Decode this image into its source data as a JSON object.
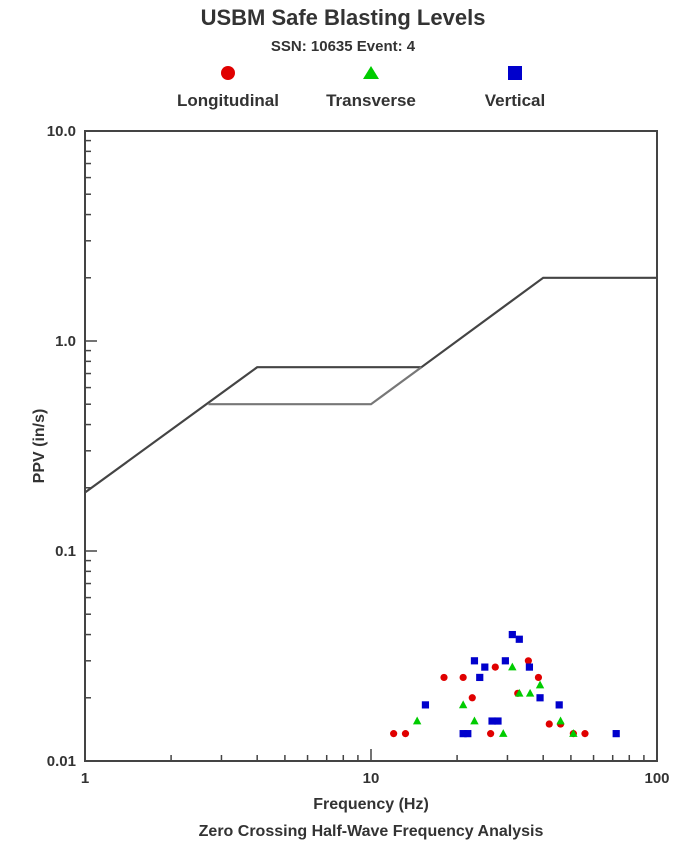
{
  "chart_data": {
    "type": "scatter",
    "title": "USBM Safe Blasting Levels",
    "subtitle": "SSN: 10635 Event: 4",
    "xlabel": "Frequency (Hz)",
    "xlabel2": "Zero Crossing Half-Wave Frequency Analysis",
    "ylabel": "PPV (in/s)",
    "xscale": "log",
    "yscale": "log",
    "xlim": [
      1,
      100
    ],
    "ylim": [
      0.01,
      10
    ],
    "grid": false,
    "legend_position": "top",
    "x_ticks": [
      {
        "value": 1,
        "label": "1"
      },
      {
        "value": 10,
        "label": "10"
      },
      {
        "value": 100,
        "label": "100"
      }
    ],
    "y_ticks": [
      {
        "value": 0.01,
        "label": "0.01"
      },
      {
        "value": 0.1,
        "label": "0.1"
      },
      {
        "value": 1,
        "label": "1.0"
      },
      {
        "value": 10,
        "label": "10.0"
      }
    ],
    "limit_lines": [
      {
        "color": "#444444",
        "points": [
          [
            1,
            0.19
          ],
          [
            4,
            0.75
          ],
          [
            15,
            0.75
          ],
          [
            40,
            2.0
          ],
          [
            100,
            2.0
          ]
        ]
      },
      {
        "color": "#777777",
        "points": [
          [
            2.7,
            0.5
          ],
          [
            10,
            0.5
          ],
          [
            15,
            0.75
          ]
        ]
      }
    ],
    "series": [
      {
        "name": "Longitudinal",
        "marker": "circle",
        "color": "#e00000",
        "points": [
          [
            12,
            0.0135
          ],
          [
            13.2,
            0.0135
          ],
          [
            18,
            0.025
          ],
          [
            21,
            0.025
          ],
          [
            22.6,
            0.02
          ],
          [
            26.2,
            0.0135
          ],
          [
            27.2,
            0.028
          ],
          [
            32.6,
            0.021
          ],
          [
            35.5,
            0.03
          ],
          [
            38.5,
            0.025
          ],
          [
            42,
            0.015
          ],
          [
            46,
            0.015
          ],
          [
            51,
            0.0135
          ],
          [
            56,
            0.0135
          ]
        ]
      },
      {
        "name": "Transverse",
        "marker": "triangle",
        "color": "#00cc00",
        "points": [
          [
            14.5,
            0.0155
          ],
          [
            21,
            0.0185
          ],
          [
            23,
            0.0155
          ],
          [
            29,
            0.0135
          ],
          [
            31.2,
            0.028
          ],
          [
            33,
            0.021
          ],
          [
            36,
            0.021
          ],
          [
            39,
            0.023
          ],
          [
            46,
            0.0155
          ],
          [
            51,
            0.0135
          ]
        ]
      },
      {
        "name": "Vertical",
        "marker": "square",
        "color": "#0000cc",
        "points": [
          [
            15.5,
            0.0185
          ],
          [
            21,
            0.0135
          ],
          [
            21.8,
            0.0135
          ],
          [
            23,
            0.03
          ],
          [
            24,
            0.025
          ],
          [
            25,
            0.028
          ],
          [
            26.5,
            0.0155
          ],
          [
            27.8,
            0.0155
          ],
          [
            29.5,
            0.03
          ],
          [
            31.2,
            0.04
          ],
          [
            33,
            0.038
          ],
          [
            35.8,
            0.028
          ],
          [
            39,
            0.02
          ],
          [
            45.5,
            0.0185
          ],
          [
            72,
            0.0135
          ]
        ]
      }
    ]
  }
}
